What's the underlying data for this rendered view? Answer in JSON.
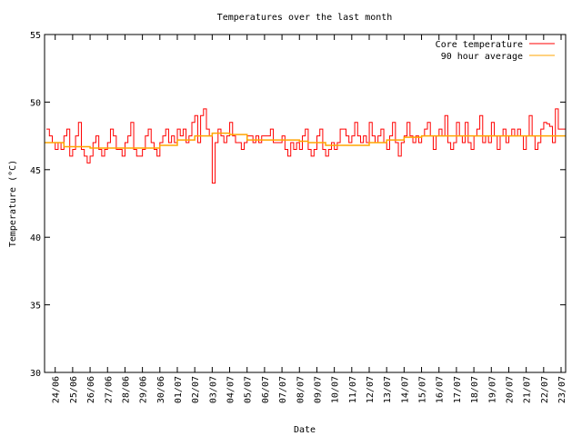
{
  "chart_data": {
    "type": "line",
    "title": "Temperatures over the last month",
    "xlabel": "Date",
    "ylabel": "Temperature (°C)",
    "ylim": [
      30,
      55
    ],
    "yticks": [
      "30",
      "35",
      "40",
      "45",
      "50",
      "55"
    ],
    "xlim_days_from_24_06": [
      -0.61,
      29.26
    ],
    "xticks": [
      "24/06",
      "25/06",
      "26/06",
      "27/06",
      "28/06",
      "29/06",
      "30/06",
      "01/07",
      "02/07",
      "03/07",
      "04/07",
      "05/07",
      "06/07",
      "07/07",
      "08/07",
      "09/07",
      "10/07",
      "11/07",
      "12/07",
      "13/07",
      "14/07",
      "15/07",
      "16/07",
      "17/07",
      "18/07",
      "19/07",
      "20/07",
      "21/07",
      "22/07",
      "23/07"
    ],
    "grid": false,
    "legend_position": "top-right",
    "series": [
      {
        "name": "Core temperature",
        "color": "#ff0000",
        "style": "steps",
        "start_day": -0.5,
        "interval_days": 0.1667,
        "values": [
          48,
          47.5,
          47,
          46.5,
          47,
          46.5,
          47.5,
          48,
          46,
          46.5,
          47.5,
          48.5,
          46.5,
          46,
          45.5,
          46,
          47,
          47.5,
          46.5,
          46,
          46.5,
          47,
          48,
          47.5,
          46.5,
          46.5,
          46,
          47,
          47.5,
          48.5,
          46.5,
          46,
          46,
          46.5,
          47.5,
          48,
          47,
          46.5,
          46,
          47,
          47.5,
          48,
          47,
          47.5,
          47,
          48,
          47.5,
          48,
          47,
          47.5,
          48.5,
          49,
          47,
          49,
          49.5,
          48,
          47.5,
          44,
          47,
          48,
          47.5,
          47,
          47.5,
          48.5,
          47.5,
          47,
          47,
          46.5,
          47,
          47.5,
          47.5,
          47,
          47.5,
          47,
          47.5,
          47.5,
          47.5,
          48,
          47,
          47,
          47,
          47.5,
          46.5,
          46,
          47,
          46.5,
          47,
          46.5,
          47.5,
          48,
          46.5,
          46,
          46.5,
          47.5,
          48,
          46.5,
          46,
          46.5,
          47,
          46.5,
          47,
          48,
          48,
          47.5,
          47,
          47.5,
          48.5,
          47.5,
          47,
          47.5,
          47,
          48.5,
          47.5,
          47,
          47.5,
          48,
          47,
          46.5,
          47.5,
          48.5,
          47,
          46,
          47,
          47.5,
          48.5,
          47.5,
          47,
          47.5,
          47,
          47.5,
          48,
          48.5,
          47.5,
          46.5,
          47.5,
          48,
          47.5,
          49,
          47,
          46.5,
          47,
          48.5,
          47.5,
          47,
          48.5,
          47,
          46.5,
          47.5,
          48,
          49,
          47,
          47.5,
          47,
          48.5,
          47.5,
          46.5,
          47.5,
          48,
          47,
          47.5,
          48,
          47.5,
          48,
          47.5,
          46.5,
          47.5,
          49,
          47.5,
          46.5,
          47,
          48,
          48.5,
          48.4,
          48.2,
          47,
          49.5,
          48
        ]
      },
      {
        "name": "90 hour average",
        "color": "#ffa500",
        "style": "steps",
        "points": [
          [
            -0.61,
            47
          ],
          [
            0.5,
            46.7
          ],
          [
            2,
            46.6
          ],
          [
            5,
            46.6
          ],
          [
            6,
            46.8
          ],
          [
            7,
            47.2
          ],
          [
            8,
            47.5
          ],
          [
            9,
            47.7
          ],
          [
            10,
            47.6
          ],
          [
            11,
            47.2
          ],
          [
            14,
            47.1
          ],
          [
            14.5,
            47
          ],
          [
            15.5,
            46.8
          ],
          [
            17,
            46.8
          ],
          [
            18,
            47
          ],
          [
            19,
            47.2
          ],
          [
            20,
            47.4
          ],
          [
            21,
            47.5
          ],
          [
            29.26,
            47.5
          ]
        ]
      }
    ]
  }
}
